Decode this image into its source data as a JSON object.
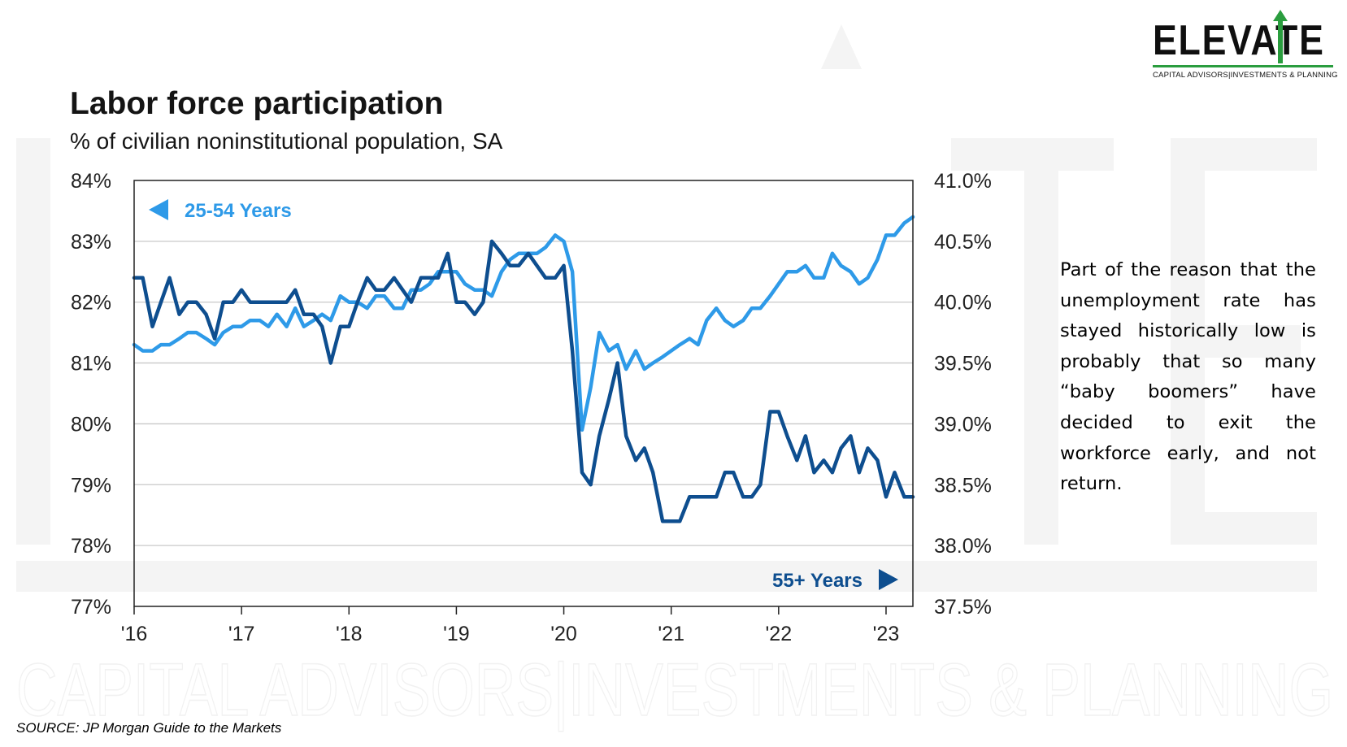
{
  "logo": {
    "word": "ELEVATE",
    "tagline": "CAPITAL ADVISORS|INVESTMENTS & PLANNING",
    "icon": "up-arrow-icon",
    "accent_color": "#2a9d3e"
  },
  "watermark_text": "CAPITAL ADVISORS|INVESTMENTS & PLANNING",
  "chart_data": {
    "type": "line",
    "title": "Labor force participation",
    "subtitle": "% of civilian noninstitutional population, SA",
    "x_tick_labels": [
      "'16",
      "'17",
      "'18",
      "'19",
      "'20",
      "'21",
      "'22",
      "'23"
    ],
    "x_range": [
      2016.0,
      2023.25
    ],
    "left_axis": {
      "range": [
        77,
        84
      ],
      "ticks": [
        84,
        83,
        82,
        81,
        80,
        79,
        78,
        77
      ],
      "tick_labels": [
        "84%",
        "83%",
        "82%",
        "81%",
        "80%",
        "79%",
        "78%",
        "77%"
      ]
    },
    "right_axis": {
      "range": [
        37.5,
        41.0
      ],
      "ticks": [
        41.0,
        40.5,
        40.0,
        39.5,
        39.0,
        38.5,
        38.0,
        37.5
      ],
      "tick_labels": [
        "41.0%",
        "40.5%",
        "40.0%",
        "39.5%",
        "39.0%",
        "38.5%",
        "38.0%",
        "37.5%"
      ]
    },
    "grid": "horizontal",
    "series": [
      {
        "name": "25-54 Years",
        "axis": "left",
        "color": "#2E9AE8",
        "label_position": "top-left",
        "points": [
          [
            2016.0,
            81.3
          ],
          [
            2016.08,
            81.2
          ],
          [
            2016.17,
            81.2
          ],
          [
            2016.25,
            81.3
          ],
          [
            2016.33,
            81.3
          ],
          [
            2016.42,
            81.4
          ],
          [
            2016.5,
            81.5
          ],
          [
            2016.58,
            81.5
          ],
          [
            2016.67,
            81.4
          ],
          [
            2016.75,
            81.3
          ],
          [
            2016.83,
            81.5
          ],
          [
            2016.92,
            81.6
          ],
          [
            2017.0,
            81.6
          ],
          [
            2017.08,
            81.7
          ],
          [
            2017.17,
            81.7
          ],
          [
            2017.25,
            81.6
          ],
          [
            2017.33,
            81.8
          ],
          [
            2017.42,
            81.6
          ],
          [
            2017.5,
            81.9
          ],
          [
            2017.58,
            81.6
          ],
          [
            2017.67,
            81.7
          ],
          [
            2017.75,
            81.8
          ],
          [
            2017.83,
            81.7
          ],
          [
            2017.92,
            82.1
          ],
          [
            2018.0,
            82.0
          ],
          [
            2018.08,
            82.0
          ],
          [
            2018.17,
            81.9
          ],
          [
            2018.25,
            82.1
          ],
          [
            2018.33,
            82.1
          ],
          [
            2018.42,
            81.9
          ],
          [
            2018.5,
            81.9
          ],
          [
            2018.58,
            82.2
          ],
          [
            2018.67,
            82.2
          ],
          [
            2018.75,
            82.3
          ],
          [
            2018.83,
            82.5
          ],
          [
            2018.92,
            82.5
          ],
          [
            2019.0,
            82.5
          ],
          [
            2019.08,
            82.3
          ],
          [
            2019.17,
            82.2
          ],
          [
            2019.25,
            82.2
          ],
          [
            2019.33,
            82.1
          ],
          [
            2019.42,
            82.5
          ],
          [
            2019.5,
            82.7
          ],
          [
            2019.58,
            82.8
          ],
          [
            2019.67,
            82.8
          ],
          [
            2019.75,
            82.8
          ],
          [
            2019.83,
            82.9
          ],
          [
            2019.92,
            83.1
          ],
          [
            2020.0,
            83.0
          ],
          [
            2020.08,
            82.5
          ],
          [
            2020.17,
            79.9
          ],
          [
            2020.25,
            80.6
          ],
          [
            2020.33,
            81.5
          ],
          [
            2020.42,
            81.2
          ],
          [
            2020.5,
            81.3
          ],
          [
            2020.58,
            80.9
          ],
          [
            2020.67,
            81.2
          ],
          [
            2020.75,
            80.9
          ],
          [
            2020.83,
            81.0
          ],
          [
            2020.92,
            81.1
          ],
          [
            2021.0,
            81.2
          ],
          [
            2021.08,
            81.3
          ],
          [
            2021.17,
            81.4
          ],
          [
            2021.25,
            81.3
          ],
          [
            2021.33,
            81.7
          ],
          [
            2021.42,
            81.9
          ],
          [
            2021.5,
            81.7
          ],
          [
            2021.58,
            81.6
          ],
          [
            2021.67,
            81.7
          ],
          [
            2021.75,
            81.9
          ],
          [
            2021.83,
            81.9
          ],
          [
            2021.92,
            82.1
          ],
          [
            2022.0,
            82.3
          ],
          [
            2022.08,
            82.5
          ],
          [
            2022.17,
            82.5
          ],
          [
            2022.25,
            82.6
          ],
          [
            2022.33,
            82.4
          ],
          [
            2022.42,
            82.4
          ],
          [
            2022.5,
            82.8
          ],
          [
            2022.58,
            82.6
          ],
          [
            2022.67,
            82.5
          ],
          [
            2022.75,
            82.3
          ],
          [
            2022.83,
            82.4
          ],
          [
            2022.92,
            82.7
          ],
          [
            2023.0,
            83.1
          ],
          [
            2023.08,
            83.1
          ],
          [
            2023.17,
            83.3
          ],
          [
            2023.25,
            83.4
          ]
        ]
      },
      {
        "name": "55+ Years",
        "axis": "right",
        "color": "#0E4E8F",
        "label_position": "bottom-right",
        "points": [
          [
            2016.0,
            40.2
          ],
          [
            2016.08,
            40.2
          ],
          [
            2016.17,
            39.8
          ],
          [
            2016.25,
            40.0
          ],
          [
            2016.33,
            40.2
          ],
          [
            2016.42,
            39.9
          ],
          [
            2016.5,
            40.0
          ],
          [
            2016.58,
            40.0
          ],
          [
            2016.67,
            39.9
          ],
          [
            2016.75,
            39.7
          ],
          [
            2016.83,
            40.0
          ],
          [
            2016.92,
            40.0
          ],
          [
            2017.0,
            40.1
          ],
          [
            2017.08,
            40.0
          ],
          [
            2017.17,
            40.0
          ],
          [
            2017.25,
            40.0
          ],
          [
            2017.33,
            40.0
          ],
          [
            2017.42,
            40.0
          ],
          [
            2017.5,
            40.1
          ],
          [
            2017.58,
            39.9
          ],
          [
            2017.67,
            39.9
          ],
          [
            2017.75,
            39.8
          ],
          [
            2017.83,
            39.5
          ],
          [
            2017.92,
            39.8
          ],
          [
            2018.0,
            39.8
          ],
          [
            2018.08,
            40.0
          ],
          [
            2018.17,
            40.2
          ],
          [
            2018.25,
            40.1
          ],
          [
            2018.33,
            40.1
          ],
          [
            2018.42,
            40.2
          ],
          [
            2018.5,
            40.1
          ],
          [
            2018.58,
            40.0
          ],
          [
            2018.67,
            40.2
          ],
          [
            2018.75,
            40.2
          ],
          [
            2018.83,
            40.2
          ],
          [
            2018.92,
            40.4
          ],
          [
            2019.0,
            40.0
          ],
          [
            2019.08,
            40.0
          ],
          [
            2019.17,
            39.9
          ],
          [
            2019.25,
            40.0
          ],
          [
            2019.33,
            40.5
          ],
          [
            2019.42,
            40.4
          ],
          [
            2019.5,
            40.3
          ],
          [
            2019.58,
            40.3
          ],
          [
            2019.67,
            40.4
          ],
          [
            2019.75,
            40.3
          ],
          [
            2019.83,
            40.2
          ],
          [
            2019.92,
            40.2
          ],
          [
            2020.0,
            40.3
          ],
          [
            2020.08,
            39.6
          ],
          [
            2020.17,
            38.6
          ],
          [
            2020.25,
            38.5
          ],
          [
            2020.33,
            38.9
          ],
          [
            2020.42,
            39.2
          ],
          [
            2020.5,
            39.5
          ],
          [
            2020.58,
            38.9
          ],
          [
            2020.67,
            38.7
          ],
          [
            2020.75,
            38.8
          ],
          [
            2020.83,
            38.6
          ],
          [
            2020.92,
            38.2
          ],
          [
            2021.0,
            38.2
          ],
          [
            2021.08,
            38.2
          ],
          [
            2021.17,
            38.4
          ],
          [
            2021.25,
            38.4
          ],
          [
            2021.33,
            38.4
          ],
          [
            2021.42,
            38.4
          ],
          [
            2021.5,
            38.6
          ],
          [
            2021.58,
            38.6
          ],
          [
            2021.67,
            38.4
          ],
          [
            2021.75,
            38.4
          ],
          [
            2021.83,
            38.5
          ],
          [
            2021.92,
            39.1
          ],
          [
            2022.0,
            39.1
          ],
          [
            2022.08,
            38.9
          ],
          [
            2022.17,
            38.7
          ],
          [
            2022.25,
            38.9
          ],
          [
            2022.33,
            38.6
          ],
          [
            2022.42,
            38.7
          ],
          [
            2022.5,
            38.6
          ],
          [
            2022.58,
            38.8
          ],
          [
            2022.67,
            38.9
          ],
          [
            2022.75,
            38.6
          ],
          [
            2022.83,
            38.8
          ],
          [
            2022.92,
            38.7
          ],
          [
            2023.0,
            38.4
          ],
          [
            2023.08,
            38.6
          ],
          [
            2023.17,
            38.4
          ],
          [
            2023.25,
            38.4
          ]
        ]
      }
    ]
  },
  "commentary": "Part of the reason that the unemployment rate has stayed historically low is probably that so many “baby boomers” have decided to exit the workforce early, and not return.",
  "source": "SOURCE: JP Morgan Guide to the Markets"
}
